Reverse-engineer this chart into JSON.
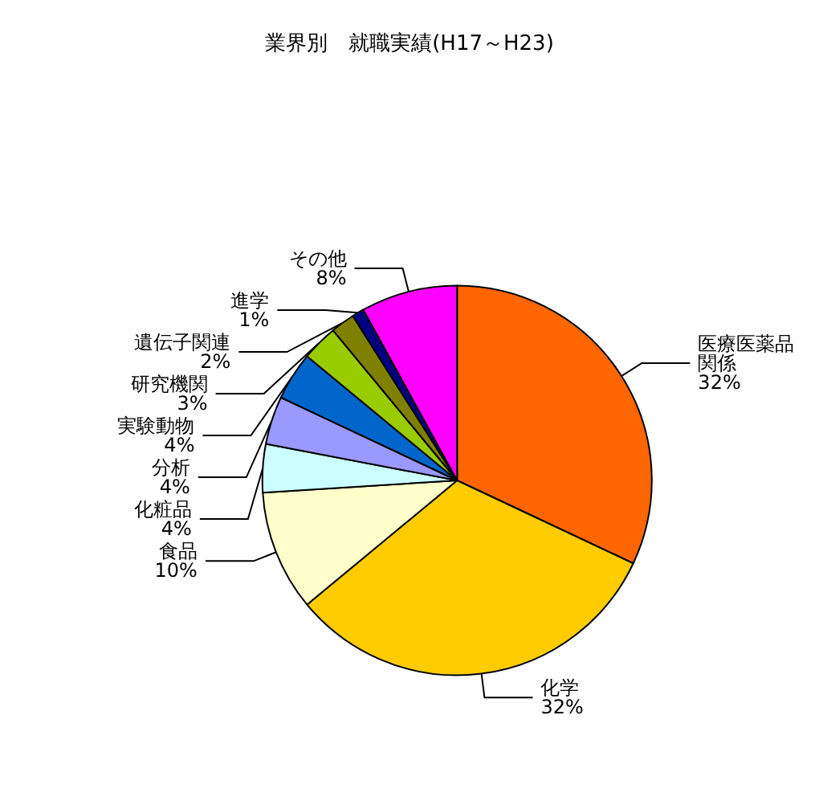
{
  "chart_data": {
    "type": "pie",
    "title": "業界別　就職実績(H17～H23)",
    "categories": [
      "医療医薬品関係",
      "化学",
      "食品",
      "化粧品",
      "分析",
      "実験動物",
      "研究機関",
      "遺伝子関連",
      "進学",
      "その他"
    ],
    "values": [
      32,
      32,
      10,
      4,
      4,
      4,
      3,
      2,
      1,
      8
    ],
    "value_labels": [
      "32%",
      "32%",
      "10%",
      "4%",
      "4%",
      "4%",
      "3%",
      "2%",
      "1%",
      "8%"
    ],
    "colors": [
      "#ff6600",
      "#ffcc00",
      "#ffffcc",
      "#ccffff",
      "#9999ff",
      "#0066cc",
      "#99cc00",
      "#808000",
      "#000080",
      "#ff00ff"
    ],
    "legend": false
  }
}
